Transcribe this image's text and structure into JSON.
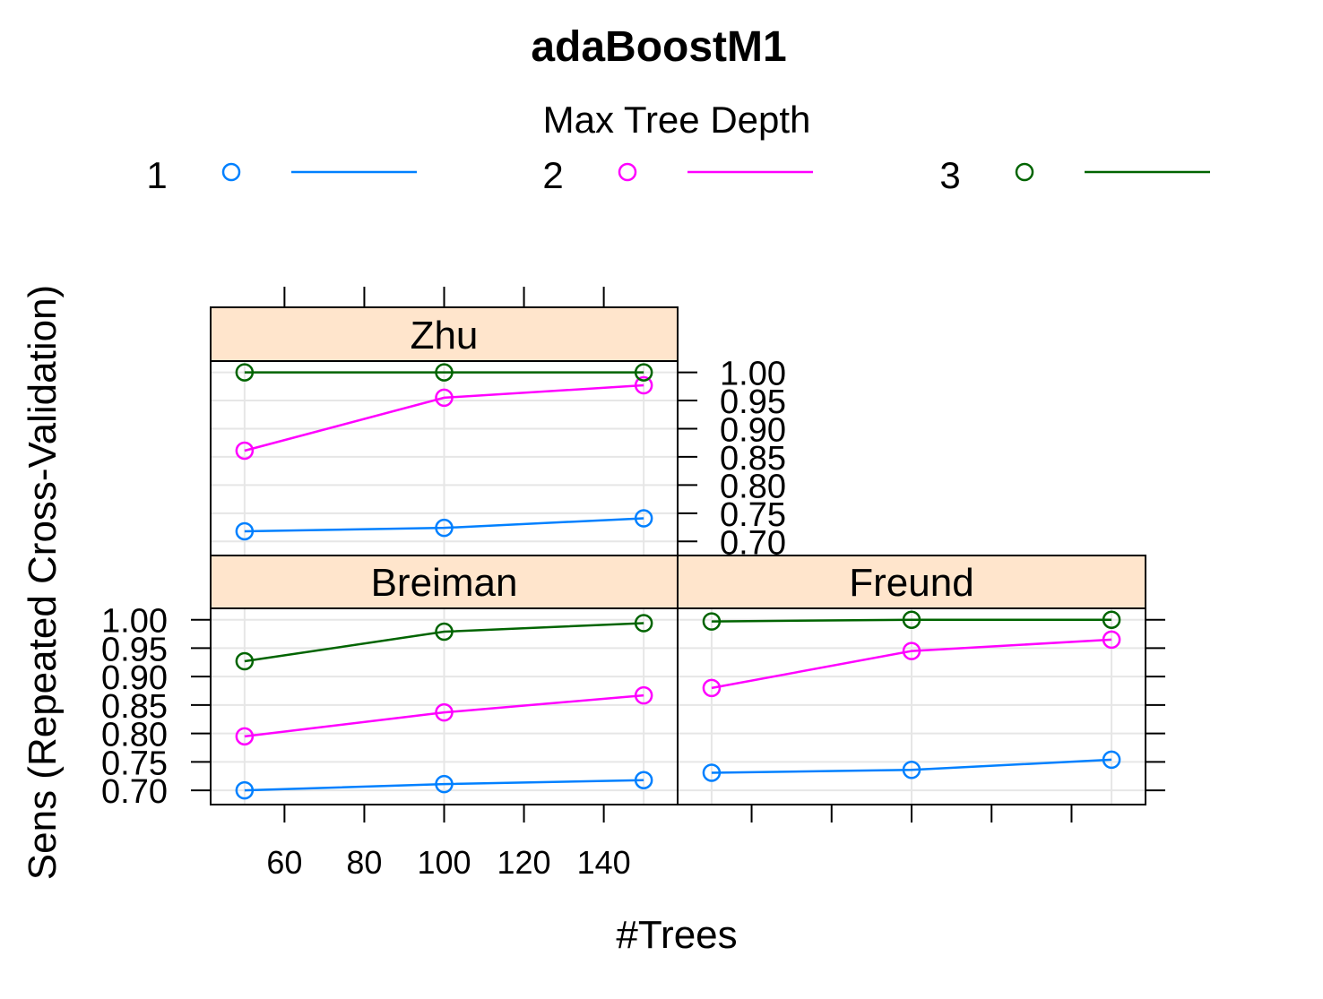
{
  "chart_data": {
    "type": "line",
    "title": "adaBoostM1",
    "xlabel": "#Trees",
    "ylabel": "Sens (Repeated Cross-Validation)",
    "legend": {
      "title": "Max Tree Depth",
      "position": "top",
      "entries": [
        {
          "name": "1",
          "color": "#0080ff"
        },
        {
          "name": "2",
          "color": "#ff00ff"
        },
        {
          "name": "3",
          "color": "#006400"
        }
      ]
    },
    "x": [
      50,
      100,
      150
    ],
    "xlim": [
      41.5,
      158.5
    ],
    "x_ticks": [
      60,
      80,
      100,
      120,
      140
    ],
    "x_tick_labels": [
      "60",
      "80",
      "100",
      "120",
      "140"
    ],
    "ylim": [
      0.675,
      1.02
    ],
    "y_ticks": [
      0.7,
      0.75,
      0.8,
      0.85,
      0.9,
      0.95,
      1.0
    ],
    "y_tick_labels": [
      "0.70",
      "0.75",
      "0.80",
      "0.85",
      "0.90",
      "0.95",
      "1.00"
    ],
    "grid": true,
    "panels": [
      {
        "name": "Zhu",
        "series": [
          {
            "name": "1",
            "values": [
              0.718,
              0.724,
              0.741
            ]
          },
          {
            "name": "2",
            "values": [
              0.861,
              0.955,
              0.977
            ]
          },
          {
            "name": "3",
            "values": [
              1.0,
              1.0,
              1.0
            ]
          }
        ]
      },
      {
        "name": "Breiman",
        "series": [
          {
            "name": "1",
            "values": [
              0.7,
              0.711,
              0.718
            ]
          },
          {
            "name": "2",
            "values": [
              0.795,
              0.837,
              0.867
            ]
          },
          {
            "name": "3",
            "values": [
              0.927,
              0.979,
              0.994
            ]
          }
        ]
      },
      {
        "name": "Freund",
        "series": [
          {
            "name": "1",
            "values": [
              0.731,
              0.736,
              0.754
            ]
          },
          {
            "name": "2",
            "values": [
              0.88,
              0.945,
              0.965
            ]
          },
          {
            "name": "3",
            "values": [
              0.997,
              1.0,
              1.0
            ]
          }
        ]
      }
    ]
  }
}
